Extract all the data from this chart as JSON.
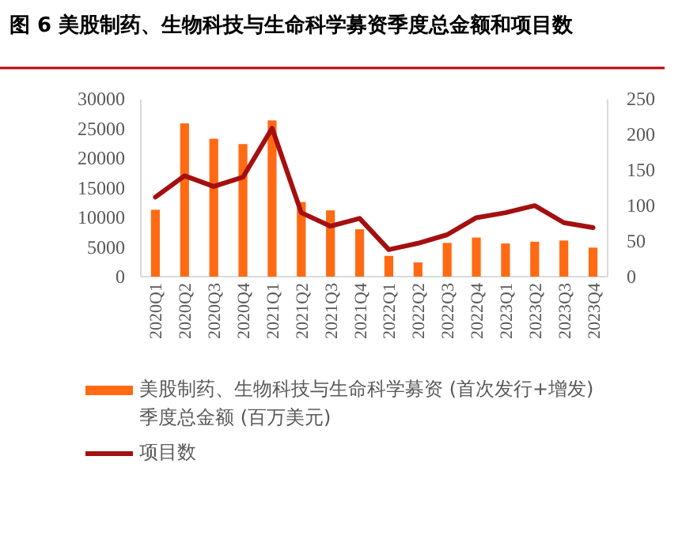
{
  "chart_data": {
    "type": "bar",
    "title": "图 6  美股制药、生物科技与生命科学募资季度总金额和项目数",
    "categories": [
      "2020Q1",
      "2020Q2",
      "2020Q3",
      "2020Q4",
      "2021Q1",
      "2021Q2",
      "2021Q3",
      "2021Q4",
      "2022Q1",
      "2022Q2",
      "2022Q3",
      "2022Q4",
      "2023Q1",
      "2023Q2",
      "2023Q3",
      "2023Q4"
    ],
    "series": [
      {
        "name": "美股制药、生物科技与生命科学募资 (首次发行+增发) 季度总金额 (百万美元)",
        "color": "#ff6a13",
        "values": [
          11300,
          25900,
          23300,
          22400,
          26400,
          12600,
          11200,
          8000,
          3500,
          2400,
          5700,
          6600,
          5600,
          5900,
          6100,
          4900
        ]
      },
      {
        "name": "项目数",
        "color": "#a50f0f",
        "type": "line",
        "axis": "y2",
        "values": [
          112,
          142,
          127,
          140,
          209,
          90,
          71,
          82,
          38,
          47,
          59,
          83,
          90,
          100,
          76,
          69
        ]
      }
    ],
    "ylim": [
      0,
      30000
    ],
    "yticks": [
      0,
      5000,
      10000,
      15000,
      20000,
      25000,
      30000
    ],
    "y2lim": [
      0,
      250
    ],
    "y2ticks": [
      0,
      50,
      100,
      150,
      200,
      250
    ],
    "legend": "bottom"
  }
}
